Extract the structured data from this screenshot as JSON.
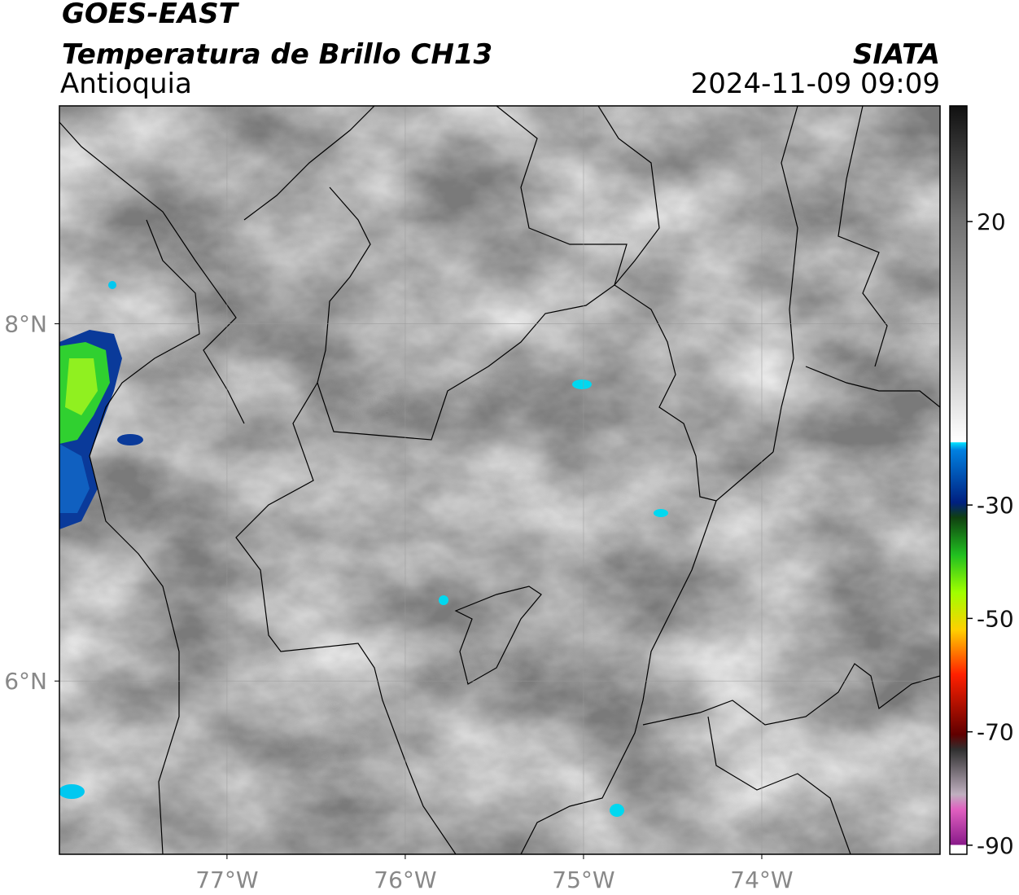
{
  "header": {
    "title": "GOES-EAST",
    "subtitle": "Temperatura de Brillo CH13",
    "region": "Antioquia",
    "source": "SIATA",
    "datetime": "2024-11-09 09:09"
  },
  "map": {
    "xlim": [
      -77.94,
      -73.0
    ],
    "ylim": [
      5.03,
      9.22
    ],
    "xticks": [
      {
        "value": -77,
        "label": "77°W"
      },
      {
        "value": -76,
        "label": "76°W"
      },
      {
        "value": -75,
        "label": "75°W"
      },
      {
        "value": -74,
        "label": "74°W"
      }
    ],
    "yticks": [
      {
        "value": 8,
        "label": "8°N"
      },
      {
        "value": 6,
        "label": "6°N"
      }
    ]
  },
  "colorbar": {
    "lim": [
      -91.6,
      40.4
    ],
    "ticks": [
      20,
      -30,
      -50,
      -70,
      -90
    ]
  }
}
